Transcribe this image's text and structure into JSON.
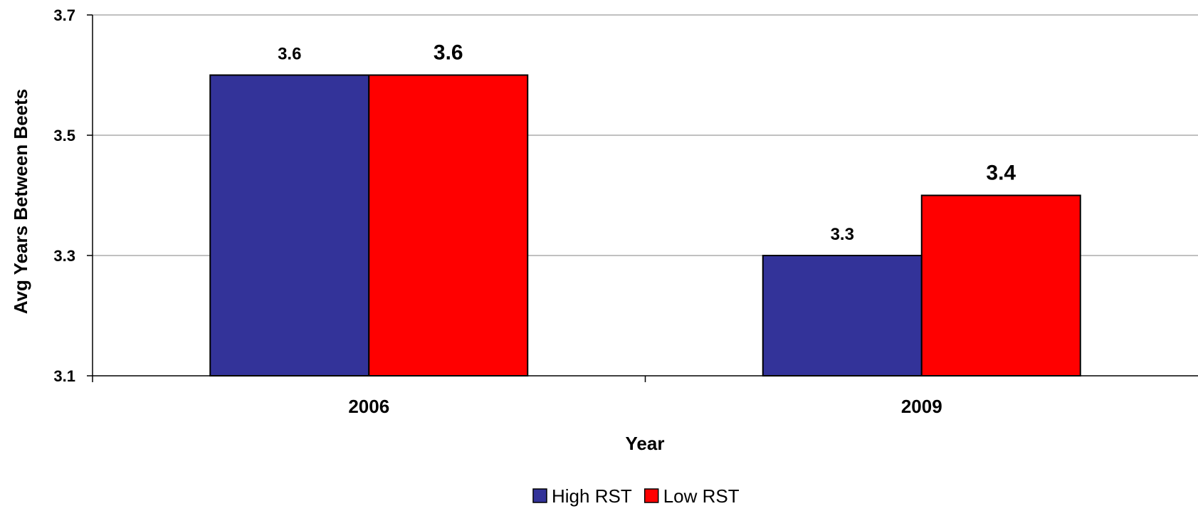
{
  "chart_data": {
    "type": "bar",
    "categories": [
      "2006",
      "2009"
    ],
    "series": [
      {
        "name": "High RST",
        "values": [
          3.6,
          3.3
        ],
        "labels": [
          "3.6",
          "3.3"
        ],
        "color": "#333399"
      },
      {
        "name": "Low RST",
        "values": [
          3.6,
          3.4
        ],
        "labels": [
          "3.6",
          "3.4"
        ],
        "color": "#ff0000"
      }
    ],
    "xlabel": "Year",
    "ylabel": "Avg Years Between Beets",
    "ylim": [
      3.1,
      3.7
    ],
    "yticks": [
      3.1,
      3.3,
      3.5,
      3.7
    ],
    "ytick_labels": [
      "3.1",
      "3.3",
      "3.5",
      "3.7"
    ],
    "grid": true,
    "legend_position": "bottom"
  }
}
